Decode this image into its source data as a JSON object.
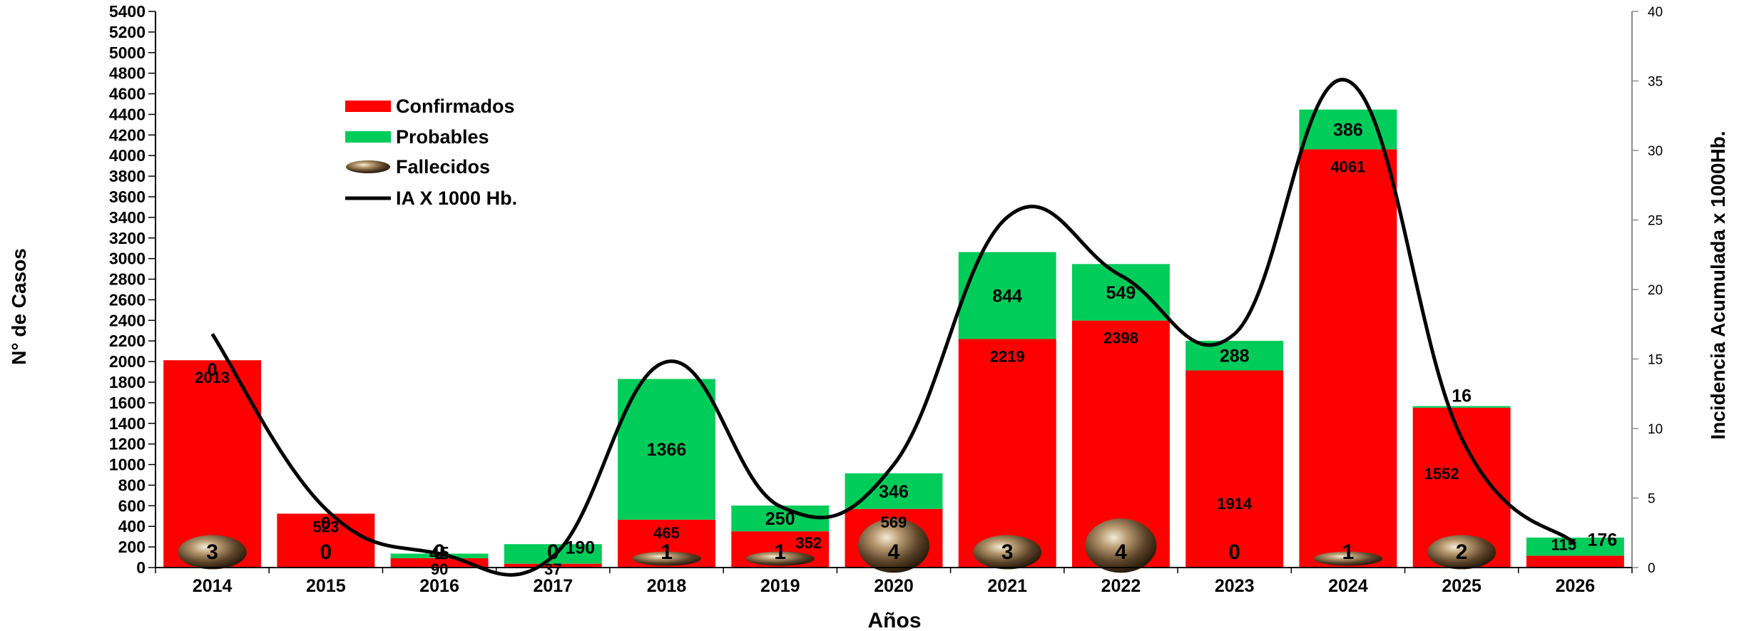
{
  "chart_data": {
    "type": "bar",
    "stacked": true,
    "ylabel": "N° de Casos",
    "y2label": "Incidencia Acumulada x 1000Hb.",
    "xlabel": "Años",
    "ylim": [
      0,
      5400
    ],
    "ytick_step": 200,
    "y2lim": [
      0,
      40
    ],
    "y2tick_step": 5,
    "categories": [
      "2014",
      "2015",
      "2016",
      "2017",
      "2018",
      "2019",
      "2020",
      "2021",
      "2022",
      "2023",
      "2024",
      "2025",
      "2026"
    ],
    "series": [
      {
        "name": "Confirmados",
        "type": "bar",
        "color": "#ff0000",
        "values": [
          2013,
          523,
          90,
          37,
          465,
          352,
          569,
          2219,
          2398,
          1914,
          4061,
          1552,
          115
        ]
      },
      {
        "name": "Probables",
        "type": "bar",
        "color": "#00cc5a",
        "values": [
          0,
          0,
          45,
          190,
          1366,
          250,
          346,
          844,
          549,
          288,
          386,
          16,
          176
        ]
      },
      {
        "name": "Fallecidos",
        "type": "marker",
        "icon": "bronze-sphere-icon",
        "values": [
          3,
          0,
          0,
          0,
          1,
          1,
          4,
          3,
          4,
          0,
          1,
          2,
          null
        ]
      },
      {
        "name": "IA X 1000 Hb.",
        "type": "line",
        "axis": "right",
        "color": "#000000",
        "values": [
          16.8,
          4.2,
          1.0,
          0.8,
          14.8,
          4.4,
          7.4,
          25.2,
          21.0,
          16.8,
          35.0,
          9.3,
          1.7
        ]
      }
    ],
    "legend": {
      "position": "top-left",
      "entries": [
        "Confirmados",
        "Probables",
        "Fallecidos",
        "IA X 1000 Hb."
      ]
    },
    "grid": false
  }
}
